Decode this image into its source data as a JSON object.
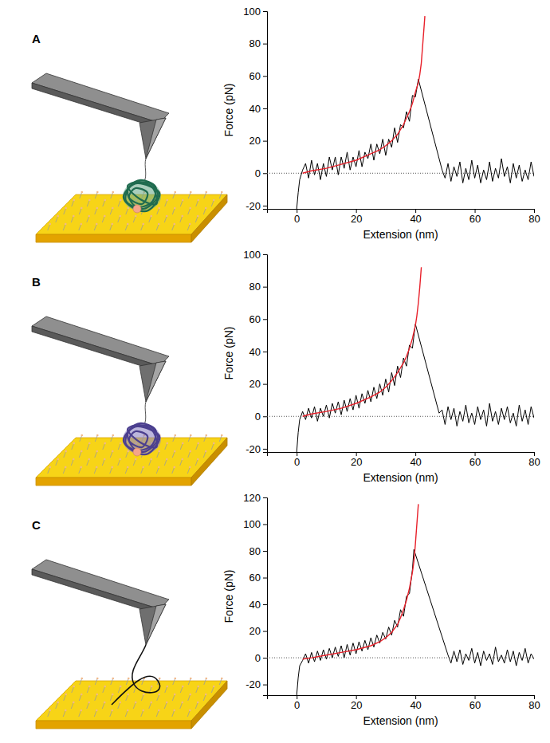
{
  "chart_data": [
    {
      "type": "line",
      "label": "A",
      "x_label": "Extension (nm)",
      "y_label": "Force (pN)",
      "xlim": [
        -10,
        80
      ],
      "xticks": [
        0,
        20,
        40,
        60,
        80
      ],
      "ylim": [
        -22,
        100
      ],
      "yticks": [
        -20,
        0,
        20,
        40,
        60,
        80,
        100
      ],
      "baseline": 0,
      "series": [
        {
          "color": "#000000",
          "x": [
            0,
            0.5,
            1,
            2,
            3,
            4,
            5,
            6,
            7,
            8,
            9,
            10,
            11,
            12,
            13,
            14,
            15,
            16,
            17,
            18,
            19,
            20,
            21,
            22,
            23,
            24,
            25,
            26,
            27,
            28,
            29,
            30,
            31,
            32,
            33,
            34,
            35,
            36,
            37,
            38,
            39,
            40,
            41,
            49,
            50,
            51,
            52,
            53,
            54,
            55,
            56,
            57,
            58,
            59,
            60,
            61,
            62,
            63,
            64,
            65,
            66,
            67,
            68,
            69,
            70,
            71,
            72,
            73,
            74,
            75,
            76,
            77,
            78,
            79,
            80
          ],
          "values": [
            -22,
            -12,
            -4,
            2,
            6,
            -3,
            8,
            -1,
            6,
            -4,
            6,
            -2,
            10,
            2,
            10,
            -1,
            10,
            3,
            13,
            2,
            10,
            4,
            14,
            4,
            13,
            9,
            18,
            8,
            18,
            12,
            21,
            11,
            21,
            16,
            28,
            19,
            30,
            28,
            38,
            32,
            48,
            47,
            58,
            2,
            -3,
            6,
            -5,
            4,
            -2,
            7,
            -6,
            3,
            -4,
            8,
            -3,
            5,
            -6,
            2,
            -4,
            7,
            -5,
            3,
            -3,
            9,
            -2,
            4,
            -6,
            6,
            -3,
            5,
            -5,
            2,
            -4,
            7,
            -2
          ]
        },
        {
          "color": "#e8202a",
          "x": [
            2,
            5,
            10,
            15,
            20,
            25,
            28,
            30,
            32,
            34,
            36,
            38,
            39,
            40,
            41,
            41.5,
            42,
            42.5,
            43,
            43.2
          ],
          "values": [
            0,
            1.5,
            3,
            5.5,
            8,
            12,
            14.5,
            17,
            20,
            24,
            30,
            38,
            43,
            50,
            56,
            61,
            68,
            80,
            92,
            97
          ]
        }
      ]
    },
    {
      "type": "line",
      "label": "B",
      "x_label": "Extension (nm)",
      "y_label": "Force (pN)",
      "xlim": [
        -10,
        80
      ],
      "xticks": [
        0,
        20,
        40,
        60,
        80
      ],
      "ylim": [
        -22,
        100
      ],
      "yticks": [
        -20,
        0,
        20,
        40,
        60,
        80,
        100
      ],
      "baseline": 0,
      "series": [
        {
          "color": "#000000",
          "x": [
            0,
            0.5,
            1,
            2,
            3,
            4,
            5,
            6,
            7,
            8,
            9,
            10,
            11,
            12,
            13,
            14,
            15,
            16,
            17,
            18,
            19,
            20,
            21,
            22,
            23,
            24,
            25,
            26,
            27,
            28,
            29,
            30,
            31,
            32,
            33,
            34,
            35,
            36,
            37,
            38,
            39,
            40,
            48,
            49,
            50,
            51,
            52,
            53,
            54,
            55,
            56,
            57,
            58,
            59,
            60,
            61,
            62,
            63,
            64,
            65,
            66,
            67,
            68,
            69,
            70,
            71,
            72,
            73,
            74,
            75,
            76,
            77,
            78,
            79,
            80
          ],
          "values": [
            -22,
            -10,
            -2,
            3,
            -2,
            5,
            -1,
            6,
            -3,
            5,
            0,
            7,
            -1,
            8,
            2,
            9,
            1,
            10,
            3,
            11,
            4,
            13,
            5,
            14,
            8,
            16,
            9,
            18,
            11,
            20,
            13,
            23,
            15,
            27,
            19,
            31,
            24,
            36,
            31,
            44,
            42,
            57,
            2,
            4,
            -5,
            6,
            -2,
            5,
            -6,
            3,
            -3,
            7,
            -4,
            2,
            -5,
            6,
            -2,
            4,
            -6,
            8,
            -3,
            3,
            -5,
            5,
            -2,
            6,
            -4,
            2,
            -6,
            7,
            -3,
            4,
            -5,
            6,
            -1
          ]
        },
        {
          "color": "#e8202a",
          "x": [
            2,
            5,
            10,
            15,
            20,
            25,
            28,
            30,
            32,
            34,
            36,
            37,
            38,
            39,
            40,
            40.5,
            41,
            41.5,
            42
          ],
          "values": [
            0,
            1.5,
            3,
            5,
            8,
            12,
            15,
            18,
            22,
            27,
            33,
            37,
            42,
            48,
            56,
            62,
            70,
            80,
            92
          ]
        }
      ]
    },
    {
      "type": "line",
      "label": "C",
      "x_label": "Extension (nm)",
      "y_label": "Force (pN)",
      "xlim": [
        -10,
        80
      ],
      "xticks": [
        0,
        20,
        40,
        60,
        80
      ],
      "ylim": [
        -28,
        120
      ],
      "yticks": [
        -20,
        0,
        20,
        40,
        60,
        80,
        100,
        120
      ],
      "baseline": 0,
      "series": [
        {
          "color": "#000000",
          "x": [
            0,
            0.5,
            1,
            2,
            3,
            4,
            5,
            6,
            7,
            8,
            9,
            10,
            11,
            12,
            13,
            14,
            15,
            16,
            17,
            18,
            19,
            20,
            21,
            22,
            23,
            24,
            25,
            26,
            27,
            28,
            29,
            30,
            31,
            32,
            33,
            34,
            35,
            36,
            37,
            38,
            39,
            39.5,
            51,
            52,
            53,
            54,
            55,
            56,
            57,
            58,
            59,
            60,
            61,
            62,
            63,
            64,
            65,
            66,
            67,
            68,
            69,
            70,
            71,
            72,
            73,
            74,
            75,
            76,
            77,
            78,
            79,
            80
          ],
          "values": [
            -28,
            -15,
            -6,
            -2,
            3,
            -4,
            4,
            -3,
            5,
            -2,
            6,
            -1,
            7,
            0,
            8,
            1,
            9,
            0,
            10,
            2,
            11,
            3,
            12,
            5,
            13,
            6,
            15,
            8,
            17,
            11,
            19,
            14,
            23,
            17,
            28,
            23,
            36,
            31,
            46,
            48,
            66,
            81,
            2,
            -4,
            5,
            -3,
            6,
            -5,
            3,
            -2,
            7,
            -4,
            4,
            -6,
            5,
            -2,
            3,
            -5,
            8,
            -3,
            2,
            -4,
            6,
            -3,
            5,
            -6,
            4,
            -2,
            7,
            -4,
            3,
            -1
          ]
        },
        {
          "color": "#e8202a",
          "x": [
            2,
            5,
            10,
            15,
            20,
            25,
            28,
            30,
            32,
            34,
            35,
            36,
            37,
            38,
            39,
            39.5,
            40,
            40.5,
            41
          ],
          "values": [
            -1,
            0,
            2,
            4,
            6,
            9,
            12,
            15,
            19,
            25,
            30,
            36,
            43,
            52,
            64,
            72,
            85,
            100,
            115
          ]
        }
      ]
    }
  ]
}
